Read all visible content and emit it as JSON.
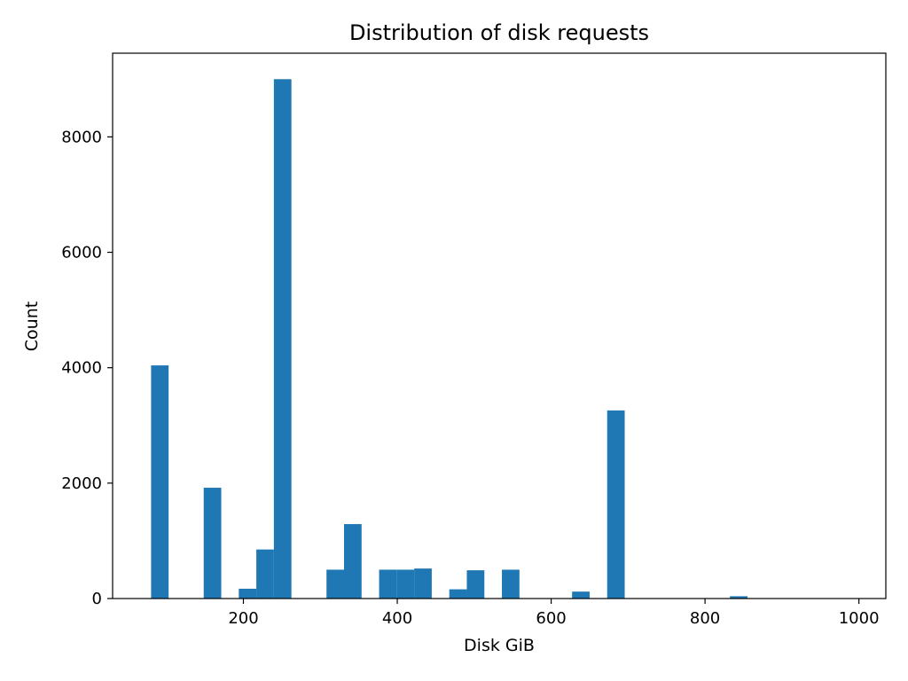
{
  "chart_data": {
    "type": "bar",
    "title": "Distribution of disk requests",
    "xlabel": "Disk GiB",
    "ylabel": "Count",
    "xlim": [
      30,
      1035
    ],
    "ylim": [
      0,
      9450
    ],
    "xticks": [
      200,
      400,
      600,
      800,
      1000
    ],
    "yticks": [
      0,
      2000,
      4000,
      6000,
      8000
    ],
    "bar_color": "#1f77b4",
    "grid": false,
    "bin_width": 22.8,
    "bins": [
      {
        "x0": 80.0,
        "count": 4040
      },
      {
        "x0": 148.4,
        "count": 1920
      },
      {
        "x0": 194.0,
        "count": 170
      },
      {
        "x0": 216.8,
        "count": 850
      },
      {
        "x0": 239.6,
        "count": 9000
      },
      {
        "x0": 308.0,
        "count": 500
      },
      {
        "x0": 330.8,
        "count": 1290
      },
      {
        "x0": 376.4,
        "count": 500
      },
      {
        "x0": 399.2,
        "count": 500
      },
      {
        "x0": 422.0,
        "count": 520
      },
      {
        "x0": 467.6,
        "count": 160
      },
      {
        "x0": 490.4,
        "count": 490
      },
      {
        "x0": 536.0,
        "count": 500
      },
      {
        "x0": 627.2,
        "count": 120
      },
      {
        "x0": 672.8,
        "count": 3260
      },
      {
        "x0": 832.4,
        "count": 40
      },
      {
        "x0": 992.0,
        "count": 5
      }
    ]
  }
}
